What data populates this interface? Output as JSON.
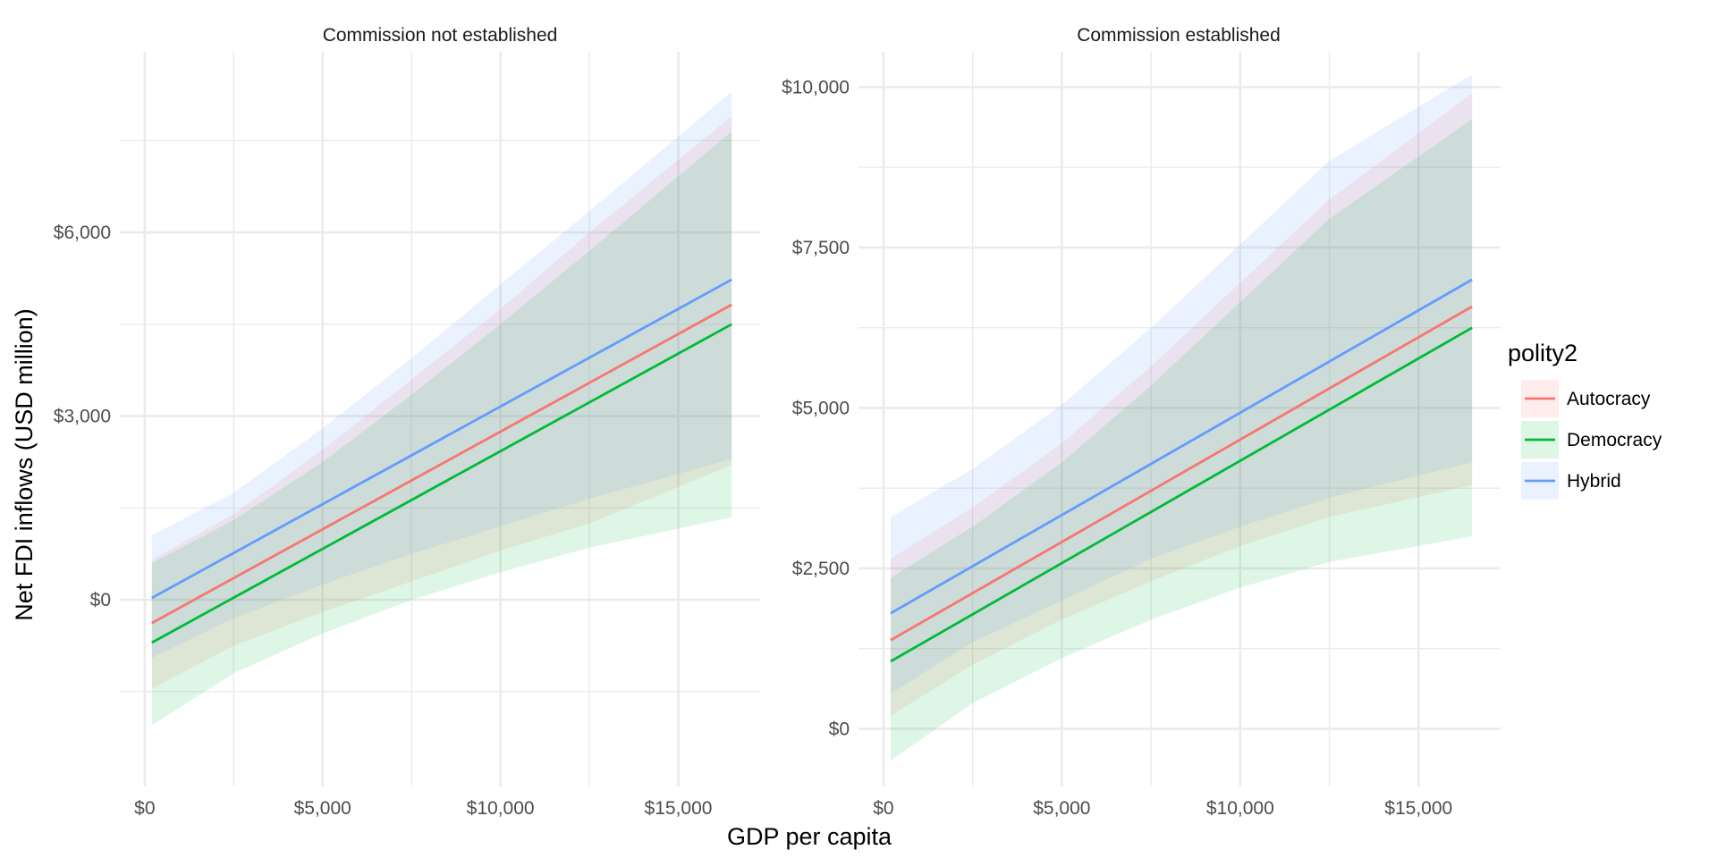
{
  "chart_data": {
    "type": "line",
    "xlabel": "GDP per capita",
    "ylabel": "Net FDI inflows (USD million)",
    "legend": {
      "title": "polity2",
      "placement": "right",
      "entries": [
        "Autocracy",
        "Democracy",
        "Hybrid"
      ]
    },
    "colors": {
      "Autocracy": "#F8766D",
      "Democracy": "#00BA38",
      "Hybrid": "#619CFF"
    },
    "band_opacity": 0.13,
    "grid": true,
    "x_ticks": [
      {
        "value": 0,
        "label": "$0"
      },
      {
        "value": 5000,
        "label": "$5,000"
      },
      {
        "value": 10000,
        "label": "$10,000"
      },
      {
        "value": 15000,
        "label": "$15,000"
      }
    ],
    "x_minor_ticks": [
      2500,
      7500,
      12500
    ],
    "xlim": [
      -700,
      17300
    ],
    "panels": [
      {
        "title": "Commission not established",
        "ylim": [
          -3050,
          8950
        ],
        "y_ticks": [
          {
            "value": 0,
            "label": "$0"
          },
          {
            "value": 3000,
            "label": "$3,000"
          },
          {
            "value": 6000,
            "label": "$6,000"
          }
        ],
        "y_minor_ticks": [
          -1500,
          1500,
          4500,
          7500
        ],
        "series": [
          {
            "name": "Autocracy",
            "x": [
              200,
              16500
            ],
            "y": [
              -380,
              4820
            ],
            "lower": [
              [
                200,
                -1450
              ],
              [
                2500,
                -750
              ],
              [
                5000,
                -200
              ],
              [
                7500,
                300
              ],
              [
                10000,
                800
              ],
              [
                12500,
                1250
              ],
              [
                16500,
                2200
              ]
            ],
            "upper": [
              [
                200,
                650
              ],
              [
                2500,
                1400
              ],
              [
                5000,
                2450
              ],
              [
                7500,
                3600
              ],
              [
                10000,
                4750
              ],
              [
                12500,
                6000
              ],
              [
                16500,
                7900
              ]
            ]
          },
          {
            "name": "Democracy",
            "x": [
              200,
              16500
            ],
            "y": [
              -700,
              4500
            ],
            "lower": [
              [
                200,
                -2050
              ],
              [
                2500,
                -1200
              ],
              [
                5000,
                -550
              ],
              [
                7500,
                0
              ],
              [
                10000,
                450
              ],
              [
                12500,
                850
              ],
              [
                16500,
                1350
              ]
            ],
            "upper": [
              [
                200,
                600
              ],
              [
                2500,
                1300
              ],
              [
                5000,
                2250
              ],
              [
                7500,
                3350
              ],
              [
                10000,
                4500
              ],
              [
                12500,
                5700
              ],
              [
                16500,
                7650
              ]
            ]
          },
          {
            "name": "Hybrid",
            "x": [
              200,
              16500
            ],
            "y": [
              30,
              5230
            ],
            "lower": [
              [
                200,
                -950
              ],
              [
                2500,
                -300
              ],
              [
                5000,
                250
              ],
              [
                7500,
                750
              ],
              [
                10000,
                1200
              ],
              [
                12500,
                1650
              ],
              [
                16500,
                2300
              ]
            ],
            "upper": [
              [
                200,
                1050
              ],
              [
                2500,
                1750
              ],
              [
                5000,
                2800
              ],
              [
                7500,
                3950
              ],
              [
                10000,
                5150
              ],
              [
                12500,
                6350
              ],
              [
                16500,
                8300
              ]
            ]
          }
        ]
      },
      {
        "title": "Commission established",
        "ylim": [
          -900,
          10550
        ],
        "y_ticks": [
          {
            "value": 0,
            "label": "$0"
          },
          {
            "value": 2500,
            "label": "$2,500"
          },
          {
            "value": 5000,
            "label": "$5,000"
          },
          {
            "value": 7500,
            "label": "$7,500"
          },
          {
            "value": 10000,
            "label": "$10,000"
          }
        ],
        "y_minor_ticks": [
          1250,
          3750,
          6250,
          8750
        ],
        "series": [
          {
            "name": "Autocracy",
            "x": [
              200,
              16500
            ],
            "y": [
              1380,
              6580
            ],
            "lower": [
              [
                200,
                200
              ],
              [
                2500,
                1000
              ],
              [
                5000,
                1700
              ],
              [
                7500,
                2300
              ],
              [
                10000,
                2850
              ],
              [
                12500,
                3300
              ],
              [
                16500,
                3800
              ]
            ],
            "upper": [
              [
                200,
                2650
              ],
              [
                2500,
                3450
              ],
              [
                5000,
                4450
              ],
              [
                7500,
                5650
              ],
              [
                10000,
                6950
              ],
              [
                12500,
                8250
              ],
              [
                16500,
                9900
              ]
            ]
          },
          {
            "name": "Democracy",
            "x": [
              200,
              16500
            ],
            "y": [
              1050,
              6250
            ],
            "lower": [
              [
                200,
                -500
              ],
              [
                2500,
                400
              ],
              [
                5000,
                1100
              ],
              [
                7500,
                1700
              ],
              [
                10000,
                2200
              ],
              [
                12500,
                2600
              ],
              [
                16500,
                3000
              ]
            ],
            "upper": [
              [
                200,
                2350
              ],
              [
                2500,
                3150
              ],
              [
                5000,
                4150
              ],
              [
                7500,
                5350
              ],
              [
                10000,
                6650
              ],
              [
                12500,
                7950
              ],
              [
                16500,
                9500
              ]
            ]
          },
          {
            "name": "Hybrid",
            "x": [
              200,
              16500
            ],
            "y": [
              1800,
              7000
            ],
            "lower": [
              [
                200,
                550
              ],
              [
                2500,
                1350
              ],
              [
                5000,
                2000
              ],
              [
                7500,
                2650
              ],
              [
                10000,
                3150
              ],
              [
                12500,
                3600
              ],
              [
                16500,
                4150
              ]
            ],
            "upper": [
              [
                200,
                3300
              ],
              [
                2500,
                4050
              ],
              [
                5000,
                5050
              ],
              [
                7500,
                6250
              ],
              [
                10000,
                7550
              ],
              [
                12500,
                8850
              ],
              [
                16500,
                10200
              ]
            ]
          }
        ]
      }
    ]
  }
}
